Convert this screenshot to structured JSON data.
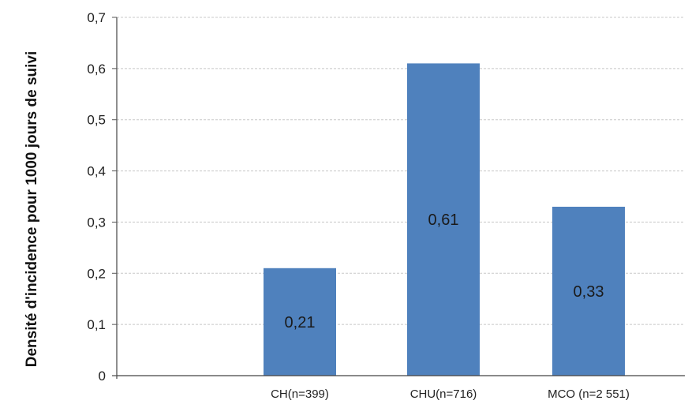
{
  "chart_data": {
    "type": "bar",
    "title": "",
    "xlabel": "",
    "ylabel": "Densité d'incidence pour 1000 jours de suivi",
    "categories": [
      "CH(n=399)",
      "CHU(n=716)",
      "MCO (n=2 551)"
    ],
    "values": [
      0.21,
      0.61,
      0.33
    ],
    "value_labels": [
      "0,21",
      "0,61",
      "0,33"
    ],
    "ylim": [
      0,
      0.7
    ],
    "yticks": [
      0,
      0.1,
      0.2,
      0.3,
      0.4,
      0.5,
      0.6,
      0.7
    ],
    "ytick_labels": [
      "0",
      "0,1",
      "0,2",
      "0,3",
      "0,4",
      "0,5",
      "0,6",
      "0,7"
    ],
    "grid": true,
    "legend": "none",
    "bar_color": "#4f81bd",
    "grid_color": "#c8c8c8"
  }
}
